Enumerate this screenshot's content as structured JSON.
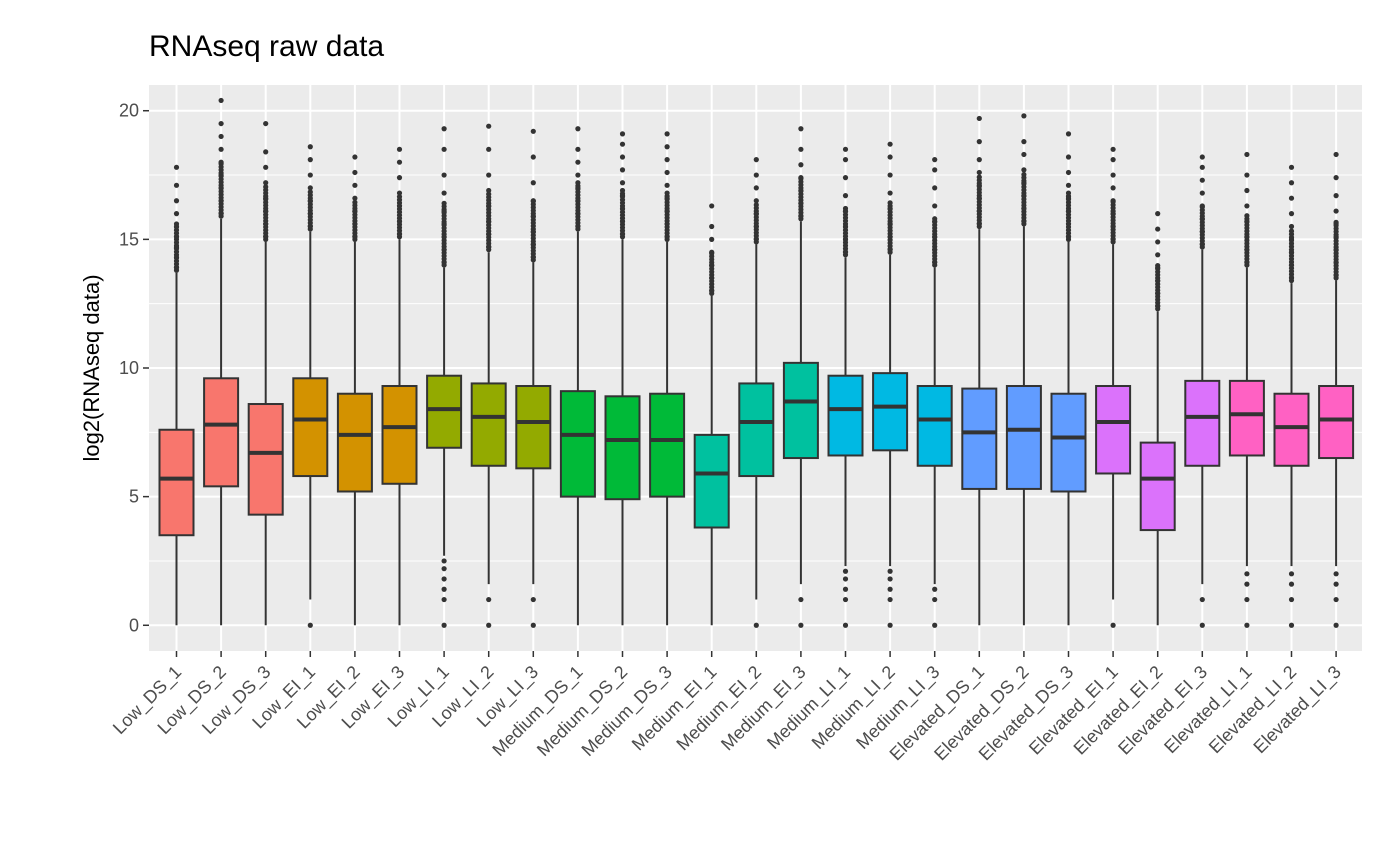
{
  "chart_data": {
    "type": "boxplot",
    "title": "RNAseq raw data",
    "xlabel": "",
    "ylabel": "log2(RNAseq data)",
    "ylim": [
      -1,
      21
    ],
    "yticks": [
      0,
      5,
      10,
      15,
      20
    ],
    "grid": true,
    "legend": "none",
    "categories": [
      "Low_DS_1",
      "Low_DS_2",
      "Low_DS_3",
      "Low_EI_1",
      "Low_EI_2",
      "Low_EI_3",
      "Low_LI_1",
      "Low_LI_2",
      "Low_LI_3",
      "Medium_DS_1",
      "Medium_DS_2",
      "Medium_DS_3",
      "Medium_EI_1",
      "Medium_EI_2",
      "Medium_EI_3",
      "Medium_LI_1",
      "Medium_LI_2",
      "Medium_LI_3",
      "Elevated_DS_1",
      "Elevated_DS_2",
      "Elevated_DS_3",
      "Elevated_EI_1",
      "Elevated_EI_2",
      "Elevated_EI_3",
      "Elevated_LI_1",
      "Elevated_LI_2",
      "Elevated_LI_3"
    ],
    "colors": [
      "#F8766D",
      "#F8766D",
      "#F8766D",
      "#D39200",
      "#D39200",
      "#D39200",
      "#93AA00",
      "#93AA00",
      "#93AA00",
      "#00BA38",
      "#00BA38",
      "#00BA38",
      "#00C19F",
      "#00C19F",
      "#00C19F",
      "#00B9E3",
      "#00B9E3",
      "#00B9E3",
      "#619CFF",
      "#619CFF",
      "#619CFF",
      "#DB72FB",
      "#DB72FB",
      "#DB72FB",
      "#FF61C3",
      "#FF61C3",
      "#FF61C3"
    ],
    "boxes": [
      {
        "min": 0,
        "q1": 3.5,
        "median": 5.7,
        "q3": 7.6,
        "whisker_high": 13.7,
        "outlier_high": [
          13.9,
          14.3,
          14.7,
          15.1,
          15.5,
          16.0,
          16.5,
          17.1,
          17.8
        ],
        "outlier_low": []
      },
      {
        "min": 0,
        "q1": 5.4,
        "median": 7.8,
        "q3": 9.6,
        "whisker_high": 15.8,
        "outlier_high": [
          16.0,
          16.5,
          17.0,
          17.5,
          18.0,
          18.5,
          19.0,
          19.5,
          20.4
        ],
        "outlier_low": []
      },
      {
        "min": 0,
        "q1": 4.3,
        "median": 6.7,
        "q3": 8.6,
        "whisker_high": 14.9,
        "outlier_high": [
          15.1,
          15.6,
          16.1,
          16.6,
          17.2,
          17.8,
          18.4,
          19.5
        ],
        "outlier_low": []
      },
      {
        "min": 1.0,
        "q1": 5.8,
        "median": 8.0,
        "q3": 9.6,
        "whisker_high": 15.3,
        "outlier_high": [
          15.5,
          16.0,
          16.5,
          17.0,
          17.5,
          18.1,
          18.6
        ],
        "outlier_low": [
          0
        ]
      },
      {
        "min": 0,
        "q1": 5.2,
        "median": 7.4,
        "q3": 9.0,
        "whisker_high": 14.9,
        "outlier_high": [
          15.1,
          15.6,
          16.1,
          16.6,
          17.1,
          17.6,
          18.2
        ],
        "outlier_low": []
      },
      {
        "min": 0,
        "q1": 5.5,
        "median": 7.7,
        "q3": 9.3,
        "whisker_high": 15.0,
        "outlier_high": [
          15.2,
          15.7,
          16.3,
          16.8,
          17.4,
          18.0,
          18.5
        ],
        "outlier_low": []
      },
      {
        "min": 2.7,
        "q1": 6.9,
        "median": 8.4,
        "q3": 9.7,
        "whisker_high": 13.9,
        "outlier_high": [
          14.1,
          14.6,
          15.1,
          15.6,
          16.1,
          16.8,
          17.5,
          18.5,
          19.3
        ],
        "outlier_low": [
          0,
          1.0,
          1.4,
          1.8,
          2.2,
          2.5
        ]
      },
      {
        "min": 1.6,
        "q1": 6.2,
        "median": 8.1,
        "q3": 9.4,
        "whisker_high": 14.5,
        "outlier_high": [
          14.7,
          15.2,
          15.7,
          16.3,
          16.9,
          17.5,
          18.5,
          19.4
        ],
        "outlier_low": [
          0,
          1.0
        ]
      },
      {
        "min": 1.6,
        "q1": 6.1,
        "median": 7.9,
        "q3": 9.3,
        "whisker_high": 14.1,
        "outlier_high": [
          14.3,
          14.8,
          15.3,
          15.9,
          16.5,
          17.2,
          18.2,
          19.2
        ],
        "outlier_low": [
          0,
          1.0
        ]
      },
      {
        "min": 0,
        "q1": 5.0,
        "median": 7.4,
        "q3": 9.1,
        "whisker_high": 15.3,
        "outlier_high": [
          15.5,
          16.0,
          16.5,
          17.0,
          17.5,
          18.0,
          18.5,
          19.3
        ],
        "outlier_low": []
      },
      {
        "min": 0,
        "q1": 4.9,
        "median": 7.2,
        "q3": 8.9,
        "whisker_high": 15.0,
        "outlier_high": [
          15.2,
          15.7,
          16.2,
          16.7,
          17.2,
          17.7,
          18.2,
          18.7,
          19.1
        ],
        "outlier_low": []
      },
      {
        "min": 0,
        "q1": 5.0,
        "median": 7.2,
        "q3": 9.0,
        "whisker_high": 14.9,
        "outlier_high": [
          15.1,
          15.6,
          16.1,
          16.6,
          17.1,
          17.6,
          18.1,
          18.6,
          19.1
        ],
        "outlier_low": []
      },
      {
        "min": 0,
        "q1": 3.8,
        "median": 5.9,
        "q3": 7.4,
        "whisker_high": 12.8,
        "outlier_high": [
          13.0,
          13.5,
          14.0,
          14.5,
          15.0,
          15.5,
          16.3
        ],
        "outlier_low": []
      },
      {
        "min": 1.0,
        "q1": 5.8,
        "median": 7.9,
        "q3": 9.4,
        "whisker_high": 14.8,
        "outlier_high": [
          15.0,
          15.5,
          16.0,
          16.5,
          17.0,
          17.5,
          18.1
        ],
        "outlier_low": [
          0
        ]
      },
      {
        "min": 1.6,
        "q1": 6.5,
        "median": 8.7,
        "q3": 10.2,
        "whisker_high": 15.7,
        "outlier_high": [
          15.9,
          16.4,
          16.9,
          17.4,
          17.9,
          18.5,
          19.3
        ],
        "outlier_low": [
          0,
          1.0
        ]
      },
      {
        "min": 2.3,
        "q1": 6.6,
        "median": 8.4,
        "q3": 9.7,
        "whisker_high": 14.3,
        "outlier_high": [
          14.5,
          15.0,
          15.5,
          16.1,
          16.7,
          17.4,
          18.1,
          18.5
        ],
        "outlier_low": [
          0,
          1.0,
          1.4,
          1.8,
          2.1
        ]
      },
      {
        "min": 2.3,
        "q1": 6.8,
        "median": 8.5,
        "q3": 9.8,
        "whisker_high": 14.4,
        "outlier_high": [
          14.6,
          15.1,
          15.6,
          16.2,
          16.8,
          17.5,
          18.2,
          18.7
        ],
        "outlier_low": [
          0,
          1.0,
          1.4,
          1.8,
          2.1
        ]
      },
      {
        "min": 1.6,
        "q1": 6.2,
        "median": 8.0,
        "q3": 9.3,
        "whisker_high": 13.9,
        "outlier_high": [
          14.1,
          14.6,
          15.1,
          15.7,
          16.3,
          17.0,
          17.7,
          18.1
        ],
        "outlier_low": [
          0,
          1.0,
          1.4
        ]
      },
      {
        "min": 0,
        "q1": 5.3,
        "median": 7.5,
        "q3": 9.2,
        "whisker_high": 15.4,
        "outlier_high": [
          15.6,
          16.1,
          16.6,
          17.1,
          17.6,
          18.1,
          18.8,
          19.7
        ],
        "outlier_low": []
      },
      {
        "min": 0,
        "q1": 5.3,
        "median": 7.6,
        "q3": 9.3,
        "whisker_high": 15.5,
        "outlier_high": [
          15.7,
          16.2,
          16.7,
          17.2,
          17.7,
          18.3,
          18.8,
          19.8
        ],
        "outlier_low": []
      },
      {
        "min": 0,
        "q1": 5.2,
        "median": 7.3,
        "q3": 9.0,
        "whisker_high": 14.9,
        "outlier_high": [
          15.1,
          15.6,
          16.1,
          16.6,
          17.1,
          17.6,
          18.2,
          19.1
        ],
        "outlier_low": []
      },
      {
        "min": 1.0,
        "q1": 5.9,
        "median": 7.9,
        "q3": 9.3,
        "whisker_high": 14.8,
        "outlier_high": [
          15.0,
          15.5,
          16.0,
          16.5,
          17.0,
          17.5,
          18.1,
          18.5
        ],
        "outlier_low": [
          0
        ]
      },
      {
        "min": 0,
        "q1": 3.7,
        "median": 5.7,
        "q3": 7.1,
        "whisker_high": 12.2,
        "outlier_high": [
          12.4,
          12.9,
          13.4,
          13.9,
          14.4,
          14.9,
          15.4,
          16.0
        ],
        "outlier_low": []
      },
      {
        "min": 1.6,
        "q1": 6.2,
        "median": 8.1,
        "q3": 9.5,
        "whisker_high": 14.6,
        "outlier_high": [
          14.8,
          15.3,
          15.8,
          16.3,
          16.8,
          17.3,
          17.8,
          18.2
        ],
        "outlier_low": [
          0,
          1.0
        ]
      },
      {
        "min": 2.3,
        "q1": 6.6,
        "median": 8.2,
        "q3": 9.5,
        "whisker_high": 13.9,
        "outlier_high": [
          14.1,
          14.6,
          15.1,
          15.7,
          16.3,
          16.9,
          17.5,
          18.3
        ],
        "outlier_low": [
          0,
          1.0,
          1.6,
          2.0
        ]
      },
      {
        "min": 2.3,
        "q1": 6.2,
        "median": 7.7,
        "q3": 9.0,
        "whisker_high": 13.3,
        "outlier_high": [
          13.5,
          14.0,
          14.5,
          15.0,
          15.5,
          16.0,
          16.6,
          17.2,
          17.8
        ],
        "outlier_low": [
          0,
          1.0,
          1.6,
          2.0
        ]
      },
      {
        "min": 2.3,
        "q1": 6.5,
        "median": 8.0,
        "q3": 9.3,
        "whisker_high": 13.4,
        "outlier_high": [
          13.6,
          14.1,
          14.6,
          15.1,
          15.6,
          16.1,
          16.7,
          17.4,
          18.3
        ],
        "outlier_low": [
          0,
          1.0,
          1.6,
          2.0
        ]
      }
    ]
  }
}
